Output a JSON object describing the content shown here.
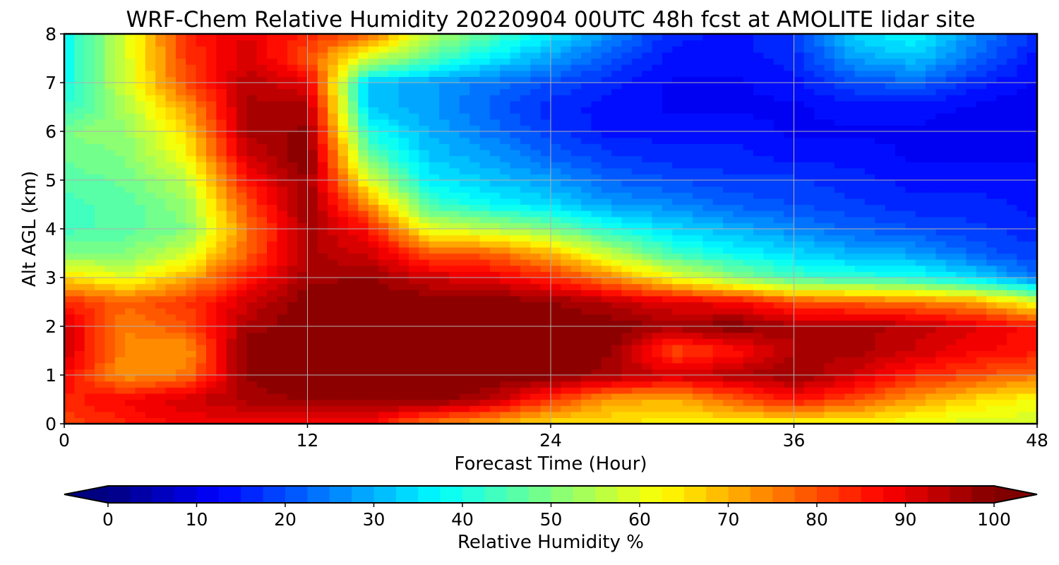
{
  "chart_data": {
    "type": "heatmap",
    "title": "WRF-Chem Relative Humidity 20220904 00UTC 48h fcst at AMOLITE lidar site",
    "xlabel": "Forecast Time (Hour)",
    "ylabel": "Alt AGL (km)",
    "xlim": [
      0,
      48
    ],
    "ylim": [
      0,
      8
    ],
    "xticks": [
      "0",
      "12",
      "24",
      "36",
      "48"
    ],
    "yticks": [
      "0",
      "1",
      "2",
      "3",
      "4",
      "5",
      "6",
      "7",
      "8"
    ],
    "grid": true,
    "colorbar": {
      "label": "Relative Humidity %",
      "colormap": "jet",
      "range": [
        0,
        100
      ],
      "ticks": [
        "0",
        "10",
        "20",
        "30",
        "40",
        "50",
        "60",
        "70",
        "80",
        "90",
        "100"
      ],
      "extend": "both"
    },
    "x": [
      0,
      3,
      6,
      9,
      12,
      15,
      18,
      21,
      24,
      27,
      30,
      33,
      36,
      39,
      42,
      45,
      48
    ],
    "y": [
      0,
      0.5,
      1,
      1.5,
      2,
      2.5,
      3,
      3.5,
      4,
      4.5,
      5,
      5.5,
      6,
      6.5,
      7,
      7.5,
      8
    ],
    "z": [
      [
        80,
        85,
        88,
        88,
        88,
        87,
        75,
        70,
        65,
        65,
        63,
        63,
        62,
        62,
        60,
        58,
        58
      ],
      [
        84,
        88,
        92,
        96,
        98,
        99,
        100,
        95,
        82,
        72,
        70,
        78,
        86,
        80,
        72,
        66,
        62
      ],
      [
        88,
        72,
        76,
        98,
        100,
        100,
        100,
        100,
        100,
        96,
        92,
        95,
        98,
        92,
        84,
        80,
        76
      ],
      [
        92,
        74,
        72,
        100,
        100,
        100,
        100,
        100,
        100,
        98,
        80,
        85,
        95,
        96,
        92,
        88,
        86
      ],
      [
        92,
        75,
        80,
        96,
        100,
        100,
        100,
        100,
        100,
        100,
        96,
        100,
        96,
        96,
        94,
        90,
        86
      ],
      [
        84,
        78,
        82,
        92,
        100,
        100,
        100,
        100,
        98,
        94,
        90,
        88,
        80,
        78,
        76,
        72,
        60
      ],
      [
        66,
        60,
        70,
        85,
        96,
        98,
        92,
        90,
        84,
        74,
        62,
        52,
        44,
        42,
        40,
        34,
        24
      ],
      [
        50,
        50,
        58,
        78,
        96,
        92,
        80,
        78,
        70,
        56,
        44,
        38,
        34,
        30,
        28,
        22,
        18
      ],
      [
        44,
        46,
        50,
        76,
        96,
        86,
        60,
        56,
        50,
        40,
        34,
        30,
        26,
        22,
        20,
        18,
        16
      ],
      [
        44,
        46,
        52,
        80,
        98,
        74,
        44,
        38,
        34,
        28,
        26,
        22,
        20,
        18,
        16,
        16,
        14
      ],
      [
        46,
        48,
        56,
        86,
        98,
        60,
        36,
        32,
        28,
        22,
        20,
        18,
        18,
        16,
        14,
        14,
        14
      ],
      [
        48,
        50,
        62,
        92,
        100,
        48,
        32,
        28,
        22,
        18,
        16,
        16,
        14,
        14,
        12,
        12,
        12
      ],
      [
        50,
        52,
        66,
        96,
        98,
        40,
        30,
        24,
        18,
        14,
        14,
        14,
        12,
        12,
        12,
        10,
        10
      ],
      [
        42,
        54,
        72,
        96,
        96,
        32,
        28,
        22,
        16,
        14,
        12,
        12,
        12,
        14,
        14,
        12,
        10
      ],
      [
        38,
        58,
        80,
        94,
        90,
        32,
        28,
        24,
        20,
        16,
        12,
        12,
        14,
        20,
        22,
        16,
        12
      ],
      [
        38,
        58,
        82,
        92,
        80,
        58,
        46,
        36,
        28,
        20,
        14,
        14,
        16,
        28,
        32,
        22,
        14
      ],
      [
        38,
        58,
        84,
        90,
        84,
        78,
        56,
        46,
        36,
        26,
        16,
        14,
        18,
        34,
        38,
        26,
        16
      ]
    ]
  }
}
